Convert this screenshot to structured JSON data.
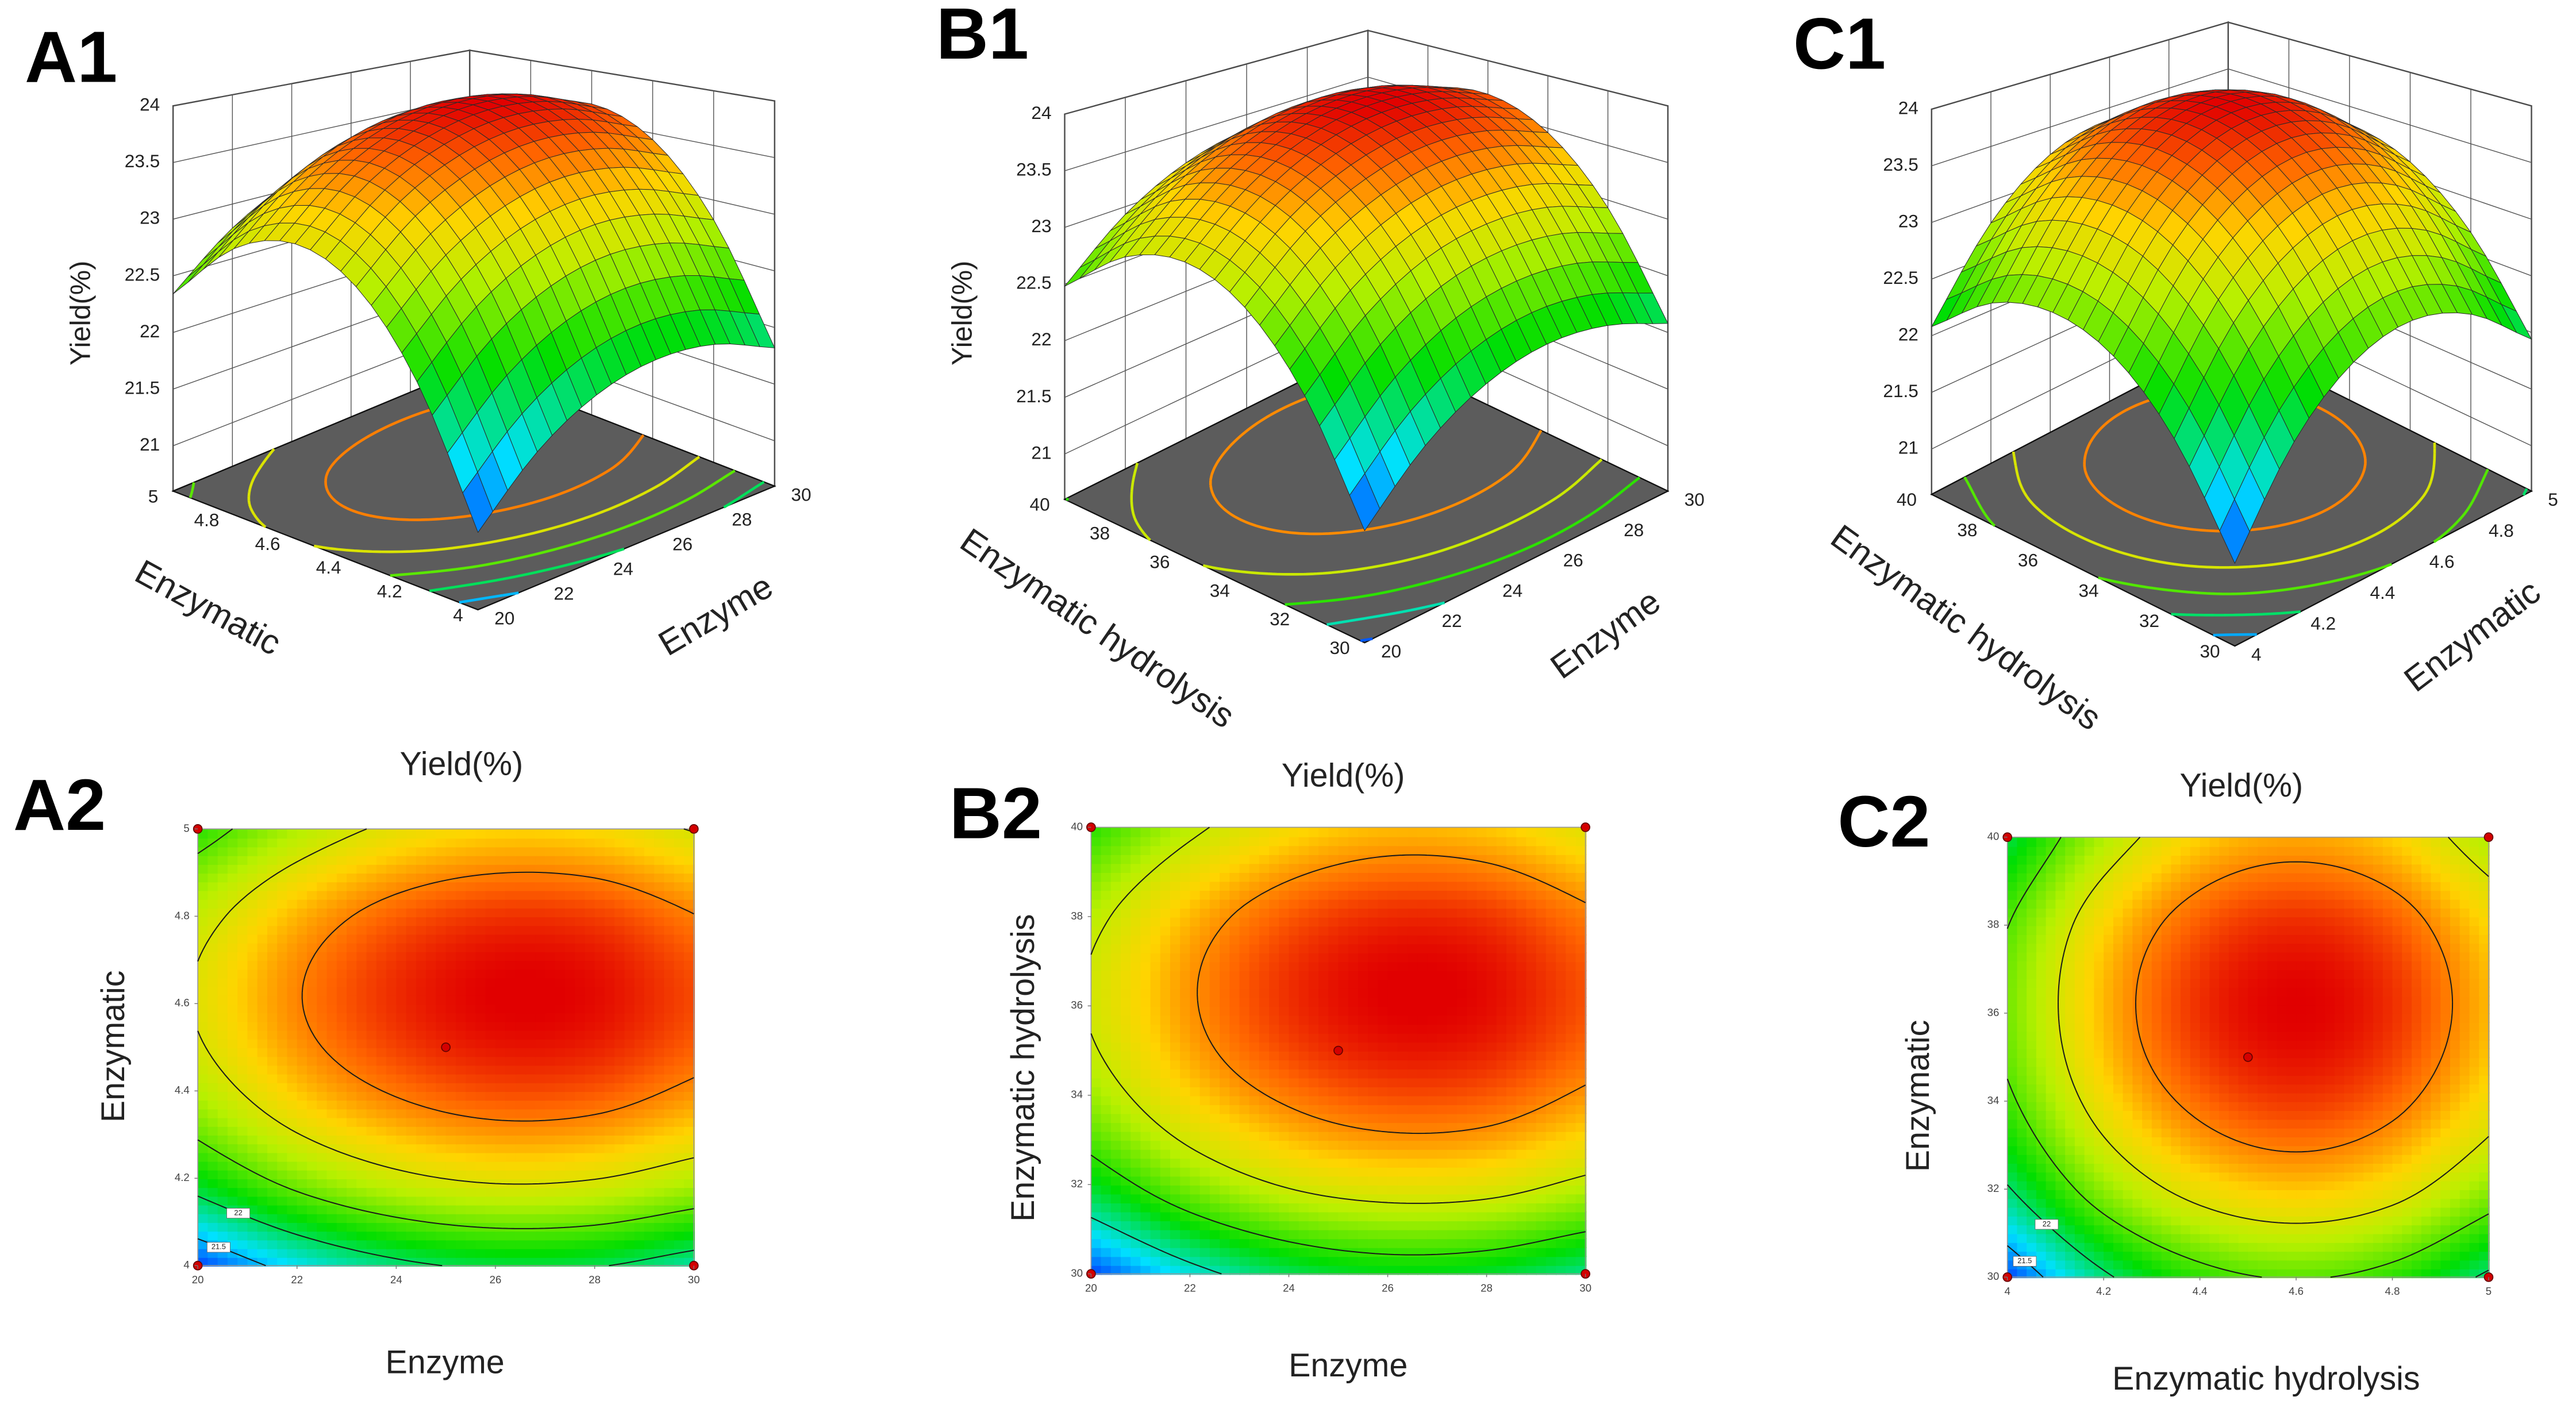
{
  "chart_data": [
    {
      "type": "surface",
      "label": "A1",
      "xlabel": "Enzyme",
      "ylabel": "Enzymatic",
      "zlabel": "Yield(%)",
      "x": [
        20,
        22,
        24,
        26,
        28,
        30
      ],
      "y": [
        4,
        4.2,
        4.4,
        4.6,
        4.8,
        5
      ],
      "z": [
        [
          21.18,
          21.63,
          21.92,
          22.05,
          22.02,
          21.82
        ],
        [
          22.18,
          22.63,
          22.92,
          23.05,
          23.01,
          22.82
        ],
        [
          22.8,
          23.25,
          23.53,
          23.66,
          23.63,
          23.44
        ],
        [
          23.03,
          23.48,
          23.76,
          23.89,
          23.86,
          23.67
        ],
        [
          22.87,
          23.32,
          23.61,
          23.74,
          23.71,
          23.51
        ],
        [
          22.34,
          22.78,
          23.07,
          23.2,
          23.17,
          22.98
        ]
      ],
      "xlim": [
        20,
        30
      ],
      "xticks": [
        20,
        22,
        24,
        26,
        28,
        30
      ],
      "ylim": [
        4,
        5
      ],
      "yticks": [
        4,
        4.2,
        4.4,
        4.6,
        4.8,
        5
      ],
      "zlim": [
        20.6,
        24
      ],
      "zticks": [
        21,
        21.5,
        22,
        22.5,
        23,
        23.5,
        24
      ],
      "contour_levels": [
        21.5,
        22,
        22.5,
        23,
        23.5
      ]
    },
    {
      "type": "surface",
      "label": "B1",
      "xlabel": "Enzyme",
      "ylabel": "Enzymatic hydrolysis",
      "zlabel": "Yield(%)",
      "x": [
        20,
        22,
        24,
        26,
        28,
        30
      ],
      "y": [
        30,
        32,
        34,
        36,
        38,
        40
      ],
      "z": [
        [
          21.44,
          21.89,
          22.18,
          22.31,
          22.27,
          22.08
        ],
        [
          22.29,
          22.74,
          23.03,
          23.15,
          23.12,
          22.93
        ],
        [
          22.82,
          23.27,
          23.55,
          23.68,
          23.65,
          23.46
        ],
        [
          23.03,
          23.47,
          23.76,
          23.89,
          23.86,
          23.67
        ],
        [
          22.91,
          23.36,
          23.65,
          23.78,
          23.75,
          23.55
        ],
        [
          22.48,
          22.93,
          23.22,
          23.35,
          23.31,
          23.12
        ]
      ],
      "xlim": [
        20,
        30
      ],
      "xticks": [
        20,
        22,
        24,
        26,
        28,
        30
      ],
      "ylim": [
        30,
        40
      ],
      "yticks": [
        30,
        32,
        34,
        36,
        38,
        40
      ],
      "zlim": [
        20.6,
        24
      ],
      "zticks": [
        21,
        21.5,
        22,
        22.5,
        23,
        23.5,
        24
      ],
      "contour_levels": [
        21.5,
        22,
        22.5,
        23,
        23.5
      ]
    },
    {
      "type": "surface",
      "label": "C1",
      "xlabel": "Enzymatic",
      "ylabel": "Enzymatic hydrolysis",
      "x": [
        4,
        4.2,
        4.4,
        4.6,
        4.8,
        5
      ],
      "y": [
        30,
        32,
        34,
        36,
        38,
        40
      ],
      "z": [
        [
          21.22,
          21.94,
          22.37,
          22.52,
          22.37,
          21.94
        ],
        [
          21.97,
          22.69,
          23.12,
          23.27,
          23.12,
          22.69
        ],
        [
          22.43,
          23.15,
          23.58,
          23.73,
          23.58,
          23.15
        ],
        [
          22.6,
          23.32,
          23.76,
          23.9,
          23.76,
          23.32
        ],
        [
          22.49,
          23.21,
          23.64,
          23.78,
          23.64,
          23.21
        ],
        [
          22.08,
          22.8,
          23.24,
          23.38,
          23.24,
          22.8
        ]
      ],
      "xlim": [
        4,
        5
      ],
      "xticks": [
        4,
        4.2,
        4.4,
        4.6,
        4.8,
        5
      ],
      "ylim": [
        30,
        40
      ],
      "yticks": [
        30,
        32,
        34,
        36,
        38,
        40
      ],
      "zlim": [
        20.6,
        24
      ],
      "zticks": [
        21,
        21.5,
        22,
        22.5,
        23,
        23.5,
        24
      ],
      "contour_levels": [
        21.5,
        22,
        22.5,
        23,
        23.5
      ]
    },
    {
      "type": "contour",
      "label": "A2",
      "title": "Yield(%)",
      "xlabel": "Enzyme",
      "ylabel": "Enzymatic",
      "x": [
        20,
        22,
        24,
        26,
        28,
        30
      ],
      "y": [
        4,
        4.2,
        4.4,
        4.6,
        4.8,
        5
      ],
      "z": [
        [
          21.18,
          21.63,
          21.92,
          22.05,
          22.02,
          21.82
        ],
        [
          22.18,
          22.63,
          22.92,
          23.05,
          23.01,
          22.82
        ],
        [
          22.8,
          23.25,
          23.53,
          23.66,
          23.63,
          23.44
        ],
        [
          23.03,
          23.48,
          23.76,
          23.89,
          23.86,
          23.67
        ],
        [
          22.87,
          23.32,
          23.61,
          23.74,
          23.71,
          23.51
        ],
        [
          22.34,
          22.78,
          23.07,
          23.2,
          23.17,
          22.98
        ]
      ],
      "xlim": [
        20,
        30
      ],
      "xticks": [
        20,
        22,
        24,
        26,
        28,
        30
      ],
      "ylim": [
        4,
        5
      ],
      "yticks": [
        4,
        4.2,
        4.4,
        4.6,
        4.8,
        5
      ],
      "contour_levels": [
        21.5,
        22,
        22.5,
        23,
        23.5
      ],
      "points": {
        "x": [
          20,
          20,
          30,
          30,
          25
        ],
        "y": [
          4,
          5,
          5,
          4,
          4.5
        ]
      }
    },
    {
      "type": "contour",
      "label": "B2",
      "title": "Yield(%)",
      "xlabel": "Enzyme",
      "ylabel": "Enzymatic hydrolysis",
      "x": [
        20,
        22,
        24,
        26,
        28,
        30
      ],
      "y": [
        30,
        32,
        34,
        36,
        38,
        40
      ],
      "z": [
        [
          21.44,
          21.89,
          22.18,
          22.31,
          22.27,
          22.08
        ],
        [
          22.29,
          22.74,
          23.03,
          23.15,
          23.12,
          22.93
        ],
        [
          22.82,
          23.27,
          23.55,
          23.68,
          23.65,
          23.46
        ],
        [
          23.03,
          23.47,
          23.76,
          23.89,
          23.86,
          23.67
        ],
        [
          22.91,
          23.36,
          23.65,
          23.78,
          23.75,
          23.55
        ],
        [
          22.48,
          22.93,
          23.22,
          23.35,
          23.31,
          23.12
        ]
      ],
      "xlim": [
        20,
        30
      ],
      "xticks": [
        20,
        22,
        24,
        26,
        28,
        30
      ],
      "ylim": [
        30,
        40
      ],
      "yticks": [
        30,
        32,
        34,
        36,
        38,
        40
      ],
      "contour_levels": [
        22,
        22.5,
        23,
        23.5
      ],
      "points": {
        "x": [
          20,
          20,
          30,
          30,
          25
        ],
        "y": [
          30,
          40,
          40,
          30,
          35
        ]
      }
    },
    {
      "type": "contour",
      "label": "C2",
      "title": "Yield(%)",
      "xlabel": "Enzymatic hydrolysis",
      "ylabel": "Enzymatic",
      "x": [
        4,
        4.2,
        4.4,
        4.6,
        4.8,
        5
      ],
      "y": [
        30,
        32,
        34,
        36,
        38,
        40
      ],
      "z": [
        [
          21.22,
          21.94,
          22.37,
          22.52,
          22.37,
          21.94
        ],
        [
          21.97,
          22.69,
          23.12,
          23.27,
          23.12,
          22.69
        ],
        [
          22.43,
          23.15,
          23.58,
          23.73,
          23.58,
          23.15
        ],
        [
          22.6,
          23.32,
          23.76,
          23.9,
          23.76,
          23.32
        ],
        [
          22.49,
          23.21,
          23.64,
          23.78,
          23.64,
          23.21
        ],
        [
          22.08,
          22.8,
          23.24,
          23.38,
          23.24,
          22.8
        ]
      ],
      "xlim": [
        4,
        5
      ],
      "xticks": [
        4,
        4.2,
        4.4,
        4.6,
        4.8,
        5
      ],
      "ylim": [
        30,
        40
      ],
      "yticks": [
        30,
        32,
        34,
        36,
        38,
        40
      ],
      "contour_levels": [
        21.5,
        22,
        22.5,
        23,
        23.5
      ],
      "points": {
        "x": [
          4,
          4,
          5,
          5,
          4.5
        ],
        "y": [
          30,
          40,
          40,
          30,
          35
        ]
      }
    }
  ]
}
